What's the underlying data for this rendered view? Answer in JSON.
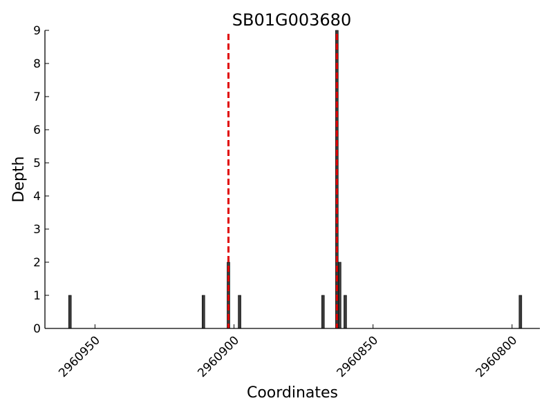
{
  "chart_data": {
    "type": "bar",
    "title": "SB01G003680",
    "xlabel": "Coordinates",
    "ylabel": "Depth",
    "x_axis_reversed": true,
    "xlim": [
      2960968,
      2960790
    ],
    "ylim": [
      0,
      9
    ],
    "x_ticks": [
      2960950,
      2960900,
      2960850,
      2960800
    ],
    "y_ticks": [
      0,
      1,
      2,
      3,
      4,
      5,
      6,
      7,
      8,
      9
    ],
    "grid": false,
    "bar_color": "#3a3a3a",
    "bars": [
      {
        "x": 2960959,
        "depth": 1
      },
      {
        "x": 2960911,
        "depth": 1
      },
      {
        "x": 2960902,
        "depth": 2
      },
      {
        "x": 2960898,
        "depth": 1
      },
      {
        "x": 2960868,
        "depth": 1
      },
      {
        "x": 2960863,
        "depth": 9
      },
      {
        "x": 2960862,
        "depth": 2
      },
      {
        "x": 2960860,
        "depth": 1
      },
      {
        "x": 2960797,
        "depth": 1
      }
    ],
    "reference_lines": [
      {
        "x": 2960902,
        "color": "#e00000",
        "style": "dashed"
      },
      {
        "x": 2960863,
        "color": "#e00000",
        "style": "dashed"
      }
    ]
  }
}
